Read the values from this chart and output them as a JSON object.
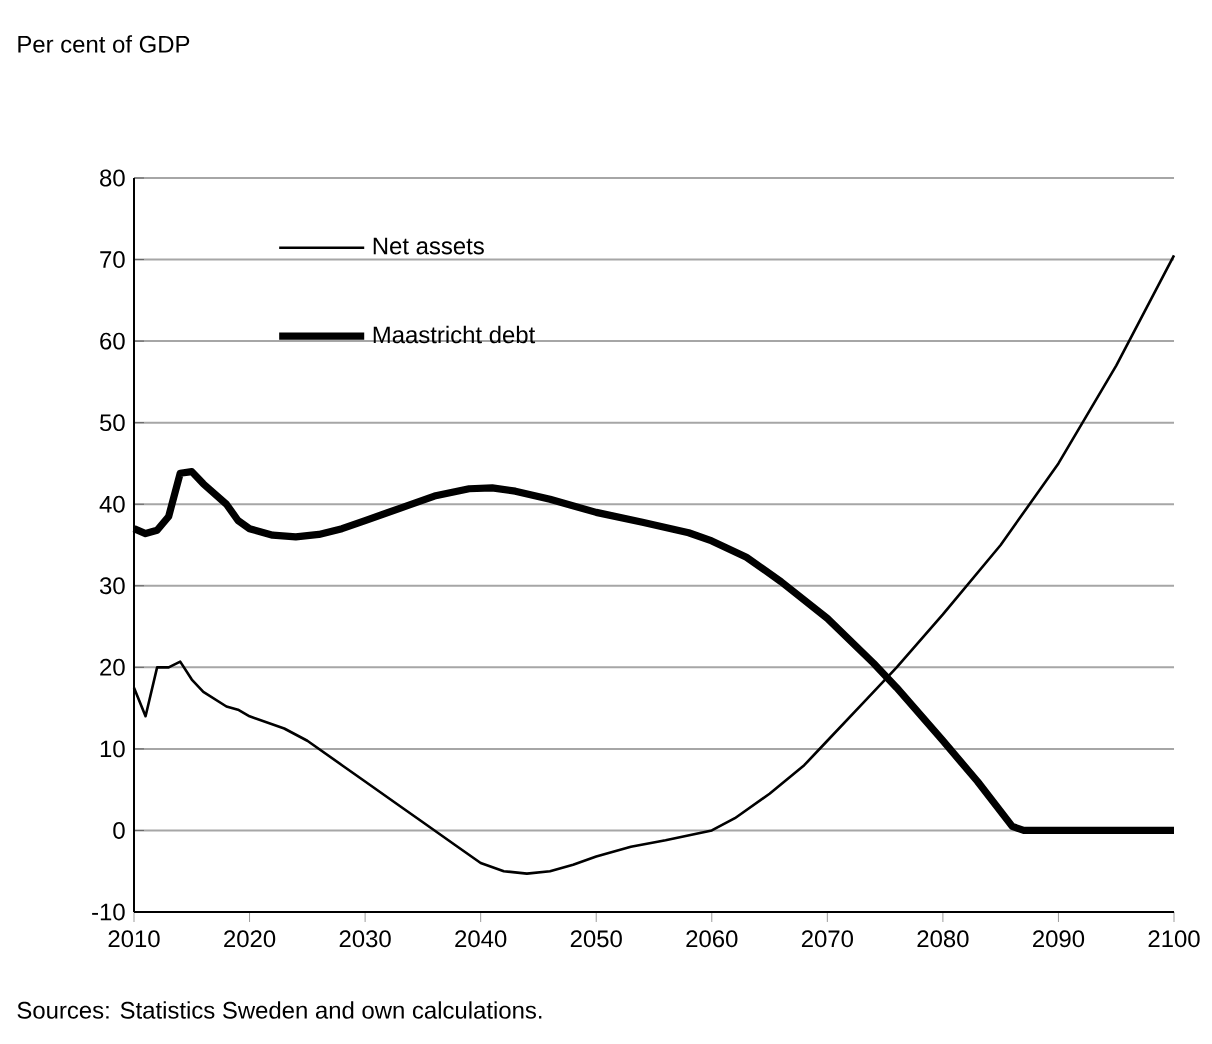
{
  "chart_data": {
    "type": "line",
    "xlim": [
      2010,
      2100
    ],
    "ylim": [
      -10,
      80
    ],
    "xticks": [
      2010,
      2020,
      2030,
      2040,
      2050,
      2060,
      2070,
      2080,
      2090,
      2100
    ],
    "yticks": [
      -10,
      0,
      10,
      20,
      30,
      40,
      50,
      60,
      70,
      80
    ],
    "grid": "y",
    "legend": "top left",
    "marker": "none",
    "line_style": "solid",
    "annotations": [
      "Per cent of GDP",
      "Sources: Statistics Sweden and own calculations."
    ],
    "series": [
      {
        "name": "Net assets",
        "color": "#000000",
        "x": [
          2010,
          2011,
          2012,
          2013,
          2014,
          2015,
          2016,
          2018,
          2019,
          2020,
          2023,
          2025,
          2028,
          2030,
          2033,
          2035,
          2038,
          2040,
          2042,
          2044,
          2046,
          2048,
          2050,
          2053,
          2056,
          2060,
          2062,
          2065,
          2068,
          2070,
          2073,
          2076,
          2080,
          2085,
          2090,
          2095,
          2100
        ],
        "values": [
          17.5,
          14,
          20,
          20,
          20.7,
          18.5,
          17,
          15.2,
          14.8,
          14,
          12.5,
          11,
          8,
          6,
          3,
          1,
          -2,
          -4,
          -5,
          -5.3,
          -5,
          -4.2,
          -3.2,
          -2,
          -1.2,
          0,
          1.5,
          4.5,
          8,
          11,
          15.5,
          20,
          26.5,
          35,
          45,
          57,
          70.5
        ]
      },
      {
        "name": "Maastricht debt",
        "color": "#000000",
        "x": [
          2010,
          2011,
          2012,
          2013,
          2014,
          2015,
          2016,
          2018,
          2019,
          2020,
          2022,
          2024,
          2026,
          2028,
          2030,
          2033,
          2036,
          2039,
          2041,
          2043,
          2046,
          2050,
          2054,
          2058,
          2060,
          2063,
          2066,
          2070,
          2074,
          2076,
          2080,
          2083,
          2086,
          2087,
          2100
        ],
        "values": [
          37,
          36.4,
          36.8,
          38.5,
          43.8,
          44,
          42.5,
          40,
          38,
          37,
          36.2,
          36,
          36.3,
          37,
          38,
          39.5,
          41,
          41.9,
          42,
          41.6,
          40.6,
          39,
          37.8,
          36.5,
          35.5,
          33.5,
          30.5,
          26,
          20.5,
          17.5,
          11,
          6,
          0.5,
          0,
          0
        ]
      }
    ]
  }
}
